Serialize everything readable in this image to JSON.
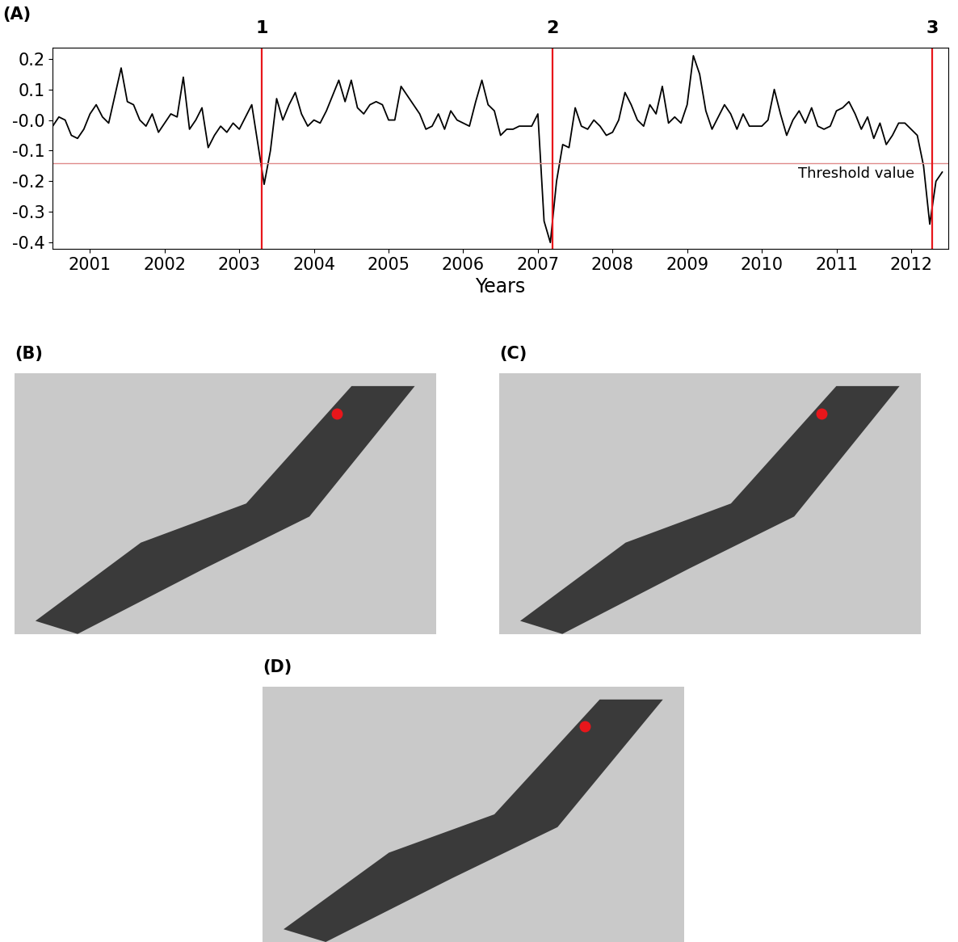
{
  "chart_data": {
    "type": "line",
    "panel_label": "(A)",
    "x_label": "Years",
    "x": [
      2001.0,
      2001.083,
      2001.167,
      2001.25,
      2001.333,
      2001.417,
      2001.5,
      2001.583,
      2001.667,
      2001.75,
      2001.833,
      2001.917,
      2002.0,
      2002.083,
      2002.167,
      2002.25,
      2002.333,
      2002.417,
      2002.5,
      2002.583,
      2002.667,
      2002.75,
      2002.833,
      2002.917,
      2003.0,
      2003.083,
      2003.167,
      2003.25,
      2003.333,
      2003.417,
      2003.5,
      2003.583,
      2003.667,
      2003.75,
      2003.833,
      2003.917,
      2004.0,
      2004.083,
      2004.167,
      2004.25,
      2004.333,
      2004.417,
      2004.5,
      2004.583,
      2004.667,
      2004.75,
      2004.833,
      2004.917,
      2005.0,
      2005.083,
      2005.167,
      2005.25,
      2005.333,
      2005.417,
      2005.5,
      2005.583,
      2005.667,
      2005.75,
      2005.833,
      2005.917,
      2006.0,
      2006.083,
      2006.167,
      2006.25,
      2006.333,
      2006.417,
      2006.5,
      2006.583,
      2006.667,
      2006.75,
      2006.833,
      2006.917,
      2007.0,
      2007.083,
      2007.167,
      2007.25,
      2007.333,
      2007.417,
      2007.5,
      2007.583,
      2007.667,
      2007.75,
      2007.833,
      2007.917,
      2008.0,
      2008.083,
      2008.167,
      2008.25,
      2008.333,
      2008.417,
      2008.5,
      2008.583,
      2008.667,
      2008.75,
      2008.833,
      2008.917,
      2009.0,
      2009.083,
      2009.167,
      2009.25,
      2009.333,
      2009.417,
      2009.5,
      2009.583,
      2009.667,
      2009.75,
      2009.833,
      2009.917,
      2010.0,
      2010.083,
      2010.167,
      2010.25,
      2010.333,
      2010.417,
      2010.5,
      2010.583,
      2010.667,
      2010.75,
      2010.833,
      2010.917,
      2011.0,
      2011.083,
      2011.167,
      2011.25,
      2011.333,
      2011.417,
      2011.5,
      2011.583,
      2011.667,
      2011.75,
      2011.833,
      2011.917,
      2012.0,
      2012.083,
      2012.167,
      2012.25,
      2012.333,
      2012.417,
      2012.5,
      2012.583,
      2012.667,
      2012.75,
      2012.833,
      2012.917
    ],
    "values": [
      -0.02,
      0.01,
      0.0,
      -0.05,
      -0.06,
      -0.03,
      0.02,
      0.05,
      0.01,
      -0.01,
      0.08,
      0.17,
      0.06,
      0.05,
      0.0,
      -0.02,
      0.02,
      -0.04,
      -0.01,
      0.02,
      0.01,
      0.14,
      -0.03,
      0.0,
      0.04,
      -0.09,
      -0.05,
      -0.02,
      -0.04,
      -0.01,
      -0.03,
      0.01,
      0.05,
      -0.08,
      -0.21,
      -0.1,
      0.07,
      0.0,
      0.05,
      0.09,
      0.02,
      -0.02,
      0.0,
      -0.01,
      0.03,
      0.08,
      0.13,
      0.06,
      0.13,
      0.04,
      0.02,
      0.05,
      0.06,
      0.05,
      0.0,
      0.0,
      0.11,
      0.08,
      0.05,
      0.02,
      -0.03,
      -0.02,
      0.02,
      -0.03,
      0.03,
      0.0,
      -0.01,
      -0.02,
      0.06,
      0.13,
      0.05,
      0.03,
      -0.05,
      -0.03,
      -0.03,
      -0.02,
      -0.02,
      -0.02,
      0.02,
      -0.33,
      -0.4,
      -0.2,
      -0.08,
      -0.09,
      0.04,
      -0.02,
      -0.03,
      0.0,
      -0.02,
      -0.05,
      -0.04,
      0.0,
      0.09,
      0.05,
      0.0,
      -0.02,
      0.05,
      0.02,
      0.11,
      -0.01,
      0.01,
      -0.01,
      0.05,
      0.21,
      0.15,
      0.03,
      -0.03,
      0.01,
      0.05,
      0.02,
      -0.03,
      0.02,
      -0.02,
      -0.02,
      -0.02,
      0.0,
      0.1,
      0.02,
      -0.05,
      0.0,
      0.03,
      -0.01,
      0.04,
      -0.02,
      -0.03,
      -0.02,
      0.03,
      0.04,
      0.06,
      0.02,
      -0.03,
      0.01,
      -0.06,
      -0.01,
      -0.08,
      -0.05,
      -0.01,
      -0.01,
      -0.03,
      -0.05,
      -0.15,
      -0.34,
      -0.2,
      -0.17
    ],
    "color": "#000000",
    "xlim": [
      2001,
      2013
    ],
    "xticks": [
      {
        "value": 2001.5,
        "label": "2001"
      },
      {
        "value": 2002.5,
        "label": "2002"
      },
      {
        "value": 2003.5,
        "label": "2003"
      },
      {
        "value": 2004.5,
        "label": "2004"
      },
      {
        "value": 2005.5,
        "label": "2005"
      },
      {
        "value": 2006.5,
        "label": "2006"
      },
      {
        "value": 2007.5,
        "label": "2007"
      },
      {
        "value": 2008.5,
        "label": "2008"
      },
      {
        "value": 2009.5,
        "label": "2009"
      },
      {
        "value": 2010.5,
        "label": "2010"
      },
      {
        "value": 2011.5,
        "label": "2011"
      },
      {
        "value": 2012.5,
        "label": "2012"
      }
    ],
    "ylim": [
      -0.42,
      0.235
    ],
    "yticks": [
      0.2,
      0.1,
      {
        "value": 0,
        "label": "-0.0"
      },
      -0.1,
      -0.2,
      -0.3,
      -0.4
    ],
    "grid": false,
    "threshold": {
      "value": -0.14,
      "label": "Threshold value",
      "color": "#e08a8a"
    },
    "events": [
      {
        "x": 2003.8,
        "label": "1"
      },
      {
        "x": 2007.7,
        "label": "2"
      },
      {
        "x": 2012.78,
        "label": "3"
      }
    ],
    "event_color": "#e8161b"
  },
  "images": [
    {
      "label": "(B)"
    },
    {
      "label": "(C)"
    },
    {
      "label": "(D)"
    }
  ]
}
